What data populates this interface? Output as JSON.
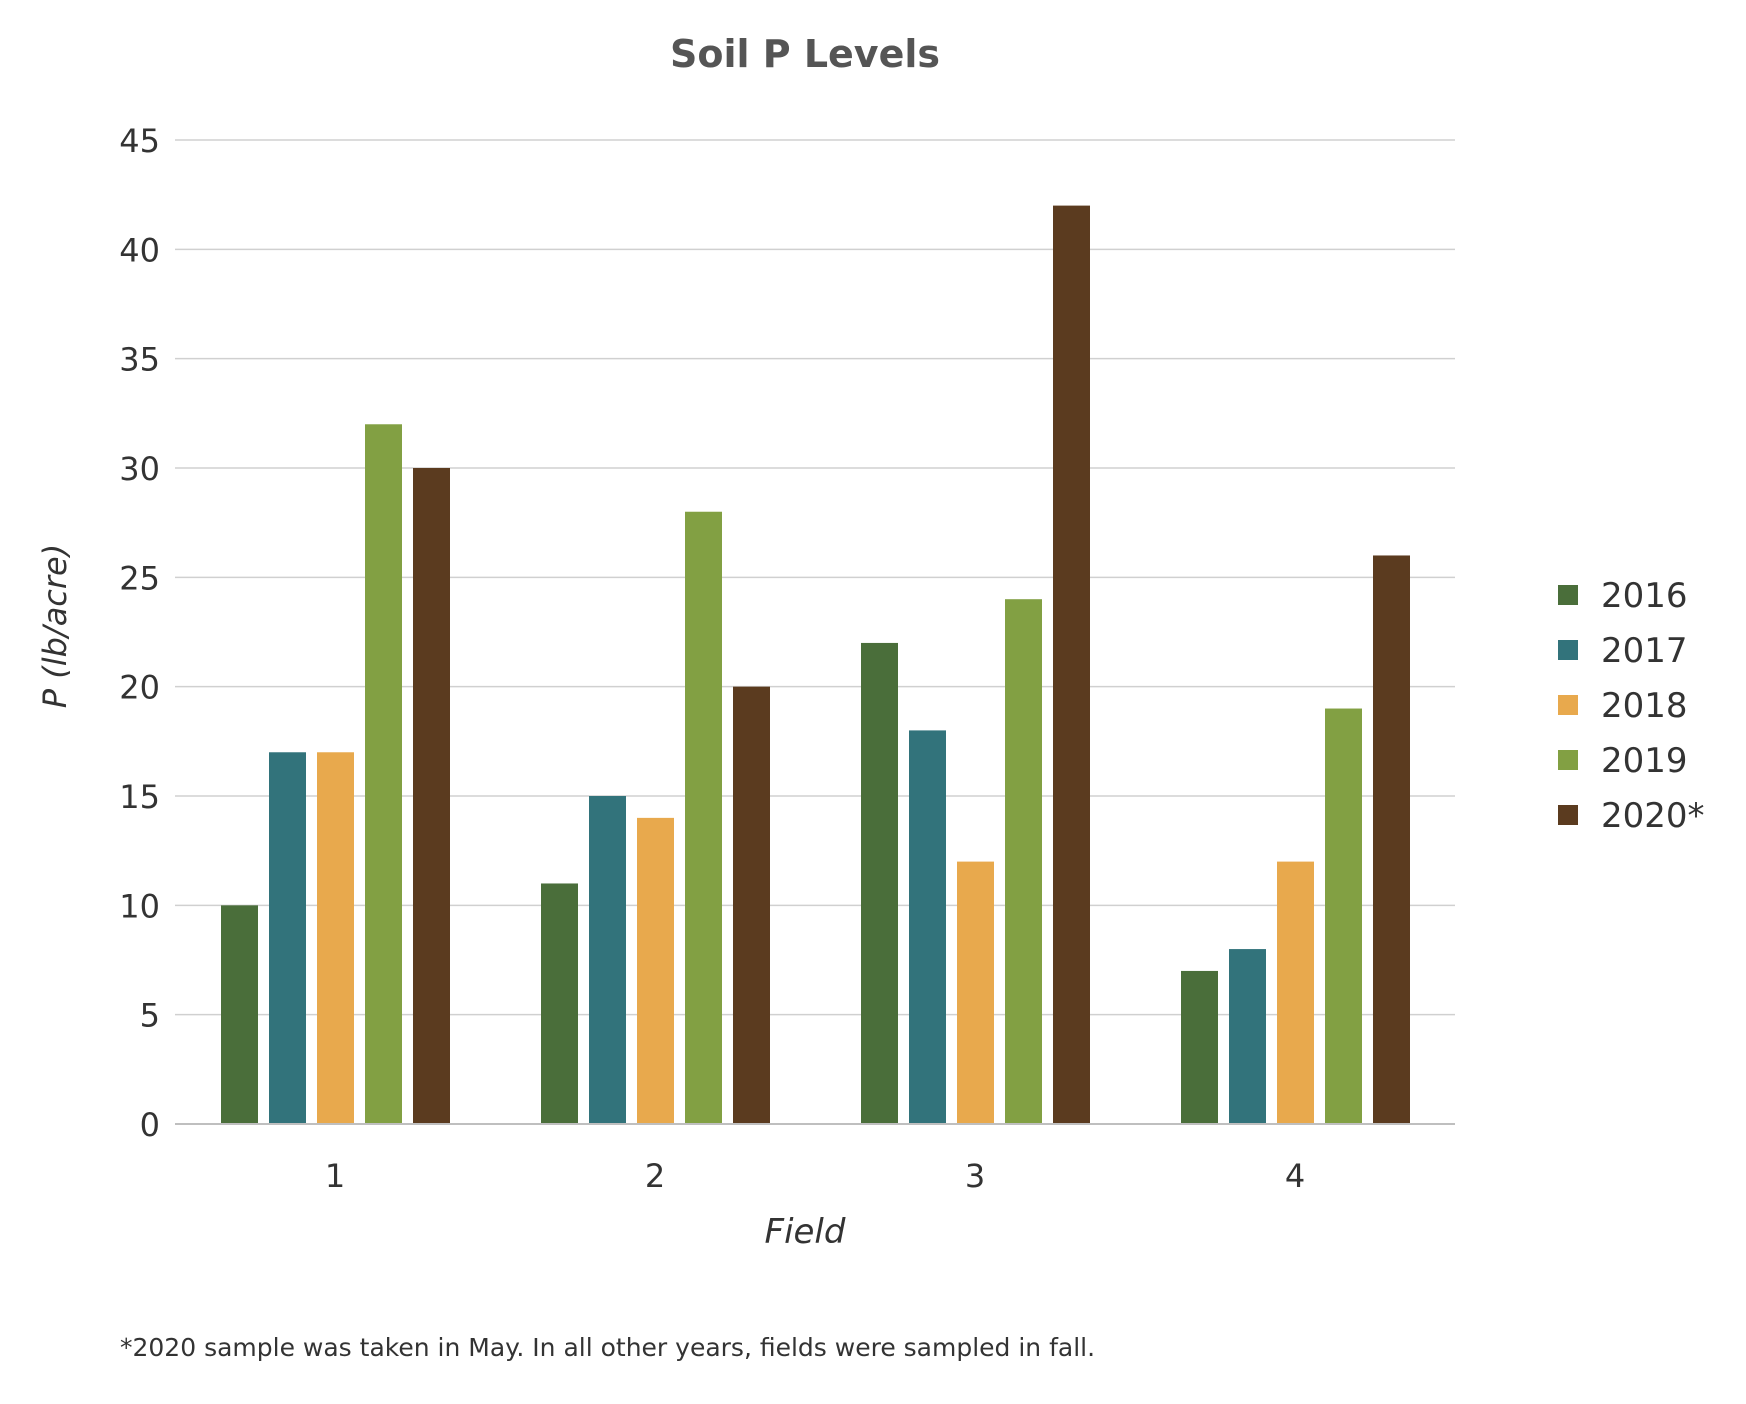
{
  "chart_data": {
    "type": "bar",
    "title": "Soil P Levels",
    "xlabel": "Field",
    "ylabel": "P (lb/acre)",
    "categories": [
      "1",
      "2",
      "3",
      "4"
    ],
    "ylim": [
      0,
      45
    ],
    "yticks": [
      "0",
      "5",
      "10",
      "15",
      "20",
      "25",
      "30",
      "35",
      "40",
      "45"
    ],
    "grid": true,
    "legend_position": "right",
    "series": [
      {
        "name": "2016",
        "color": "#4a6e3a",
        "values": [
          10,
          11,
          22,
          7
        ]
      },
      {
        "name": "2017",
        "color": "#32737b",
        "values": [
          17,
          15,
          18,
          8
        ]
      },
      {
        "name": "2018",
        "color": "#e8a94d",
        "values": [
          17,
          14,
          12,
          12
        ]
      },
      {
        "name": "2019",
        "color": "#82a043",
        "values": [
          32,
          28,
          24,
          19
        ]
      },
      {
        "name": "2020*",
        "color": "#5b3b1f",
        "values": [
          30,
          20,
          42,
          26
        ]
      }
    ],
    "footnote": "*2020 sample was taken in May. In all other years, fields were sampled in fall."
  }
}
